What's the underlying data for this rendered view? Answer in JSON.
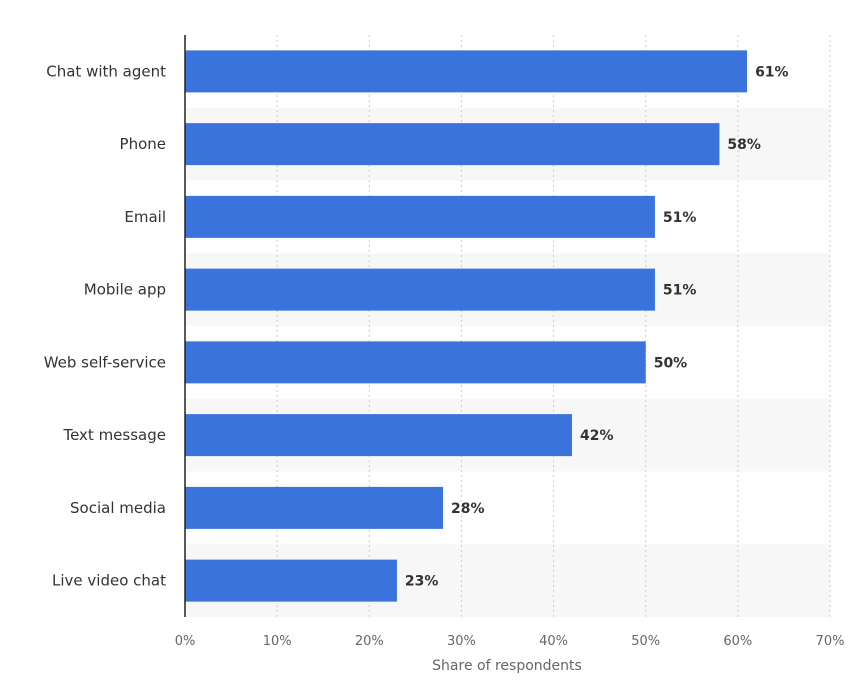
{
  "chart_data": {
    "type": "bar",
    "orientation": "horizontal",
    "categories": [
      "Chat with agent",
      "Phone",
      "Email",
      "Mobile app",
      "Web self-service",
      "Text message",
      "Social media",
      "Live video chat"
    ],
    "values": [
      61,
      58,
      51,
      51,
      50,
      42,
      28,
      23
    ],
    "value_labels": [
      "61%",
      "58%",
      "51%",
      "51%",
      "50%",
      "42%",
      "28%",
      "23%"
    ],
    "x_ticks": [
      "0%",
      "10%",
      "20%",
      "30%",
      "40%",
      "50%",
      "60%",
      "70%"
    ],
    "xlim": [
      0,
      70
    ],
    "xlabel": "Share of respondents",
    "ylabel": "",
    "title": "",
    "grid": "vertical dotted",
    "bar_color": "#3a73db",
    "band_color": "#f7f7f7"
  }
}
